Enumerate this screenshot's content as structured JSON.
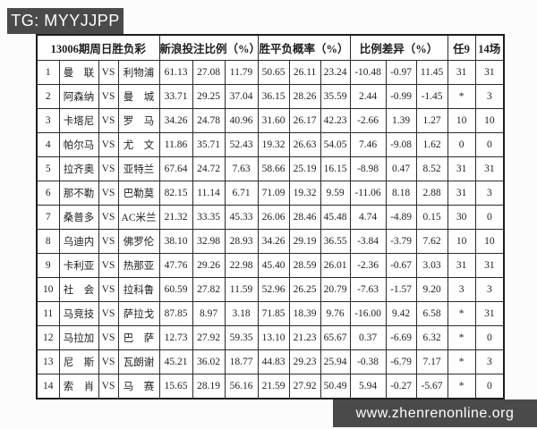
{
  "banners": {
    "top": "TG: MYYJJPP",
    "bottom": "www.zhenrenonline.org"
  },
  "colors": {
    "banner_background": "#4a4a4a",
    "banner_text": "#ffffff",
    "table_border": "#1c1c1c",
    "text": "#1e1e1e",
    "negative_value": "#9e4b4b"
  },
  "table": {
    "group_headers": {
      "period": "13006期周日胜负彩",
      "bet_ratio": "新浪投注比例（%）",
      "probability": "胜平负概率（%）",
      "difference": "比例差异（%）",
      "ren9": "任9",
      "c14": "14场"
    },
    "rows": [
      {
        "no": "1",
        "home": "曼　联",
        "vs": "VS",
        "away": "利物浦",
        "bet": [
          "61.13",
          "27.08",
          "11.79"
        ],
        "prob": [
          "50.65",
          "26.11",
          "23.24"
        ],
        "diff": [
          "-10.48",
          "-0.97",
          "11.45"
        ],
        "ren9": "31",
        "c14": "31"
      },
      {
        "no": "2",
        "home": "阿森纳",
        "vs": "VS",
        "away": "曼　城",
        "bet": [
          "33.71",
          "29.25",
          "37.04"
        ],
        "prob": [
          "36.15",
          "28.26",
          "35.59"
        ],
        "diff": [
          "2.44",
          "-0.99",
          "-1.45"
        ],
        "ren9": "*",
        "c14": "3"
      },
      {
        "no": "3",
        "home": "卡塔尼",
        "vs": "VS",
        "away": "罗　马",
        "bet": [
          "34.26",
          "24.78",
          "40.96"
        ],
        "prob": [
          "31.60",
          "26.17",
          "42.23"
        ],
        "diff": [
          "-2.66",
          "1.39",
          "1.27"
        ],
        "ren9": "10",
        "c14": "10"
      },
      {
        "no": "4",
        "home": "帕尔马",
        "vs": "VS",
        "away": "尤　文",
        "bet": [
          "11.86",
          "35.71",
          "52.43"
        ],
        "prob": [
          "19.32",
          "26.63",
          "54.05"
        ],
        "diff": [
          "7.46",
          "-9.08",
          "1.62"
        ],
        "ren9": "0",
        "c14": "0"
      },
      {
        "no": "5",
        "home": "拉齐奥",
        "vs": "VS",
        "away": "亚特兰",
        "bet": [
          "67.64",
          "24.72",
          "7.63"
        ],
        "prob": [
          "58.66",
          "25.19",
          "16.15"
        ],
        "diff": [
          "-8.98",
          "0.47",
          "8.52"
        ],
        "ren9": "31",
        "c14": "31"
      },
      {
        "no": "6",
        "home": "那不勒",
        "vs": "VS",
        "away": "巴勒莫",
        "bet": [
          "82.15",
          "11.14",
          "6.71"
        ],
        "prob": [
          "71.09",
          "19.32",
          "9.59"
        ],
        "diff": [
          "-11.06",
          "8.18",
          "2.88"
        ],
        "ren9": "31",
        "c14": "3"
      },
      {
        "no": "7",
        "home": "桑普多",
        "vs": "VS",
        "away": "AC米兰",
        "bet": [
          "21.32",
          "33.35",
          "45.33"
        ],
        "prob": [
          "26.06",
          "28.46",
          "45.48"
        ],
        "diff": [
          "4.74",
          "-4.89",
          "0.15"
        ],
        "ren9": "30",
        "c14": "0"
      },
      {
        "no": "8",
        "home": "乌迪内",
        "vs": "VS",
        "away": "佛罗伦",
        "bet": [
          "38.10",
          "32.98",
          "28.93"
        ],
        "prob": [
          "34.26",
          "29.19",
          "36.55"
        ],
        "diff": [
          "-3.84",
          "-3.79",
          "7.62"
        ],
        "ren9": "10",
        "c14": "10"
      },
      {
        "no": "9",
        "home": "卡利亚",
        "vs": "VS",
        "away": "热那亚",
        "bet": [
          "47.76",
          "29.26",
          "22.98"
        ],
        "prob": [
          "45.40",
          "28.59",
          "26.01"
        ],
        "diff": [
          "-2.36",
          "-0.67",
          "3.03"
        ],
        "ren9": "31",
        "c14": "31"
      },
      {
        "no": "10",
        "home": "社　会",
        "vs": "VS",
        "away": "拉科鲁",
        "bet": [
          "60.59",
          "27.82",
          "11.59"
        ],
        "prob": [
          "52.96",
          "26.25",
          "20.79"
        ],
        "diff": [
          "-7.63",
          "-1.57",
          "9.20"
        ],
        "ren9": "3",
        "c14": "3"
      },
      {
        "no": "11",
        "home": "马竞技",
        "vs": "VS",
        "away": "萨拉戈",
        "bet": [
          "87.85",
          "8.97",
          "3.18"
        ],
        "prob": [
          "71.85",
          "18.39",
          "9.76"
        ],
        "diff": [
          "-16.00",
          "9.42",
          "6.58"
        ],
        "ren9": "*",
        "c14": "31"
      },
      {
        "no": "12",
        "home": "马拉加",
        "vs": "VS",
        "away": "巴　萨",
        "bet": [
          "12.73",
          "27.92",
          "59.35"
        ],
        "prob": [
          "13.10",
          "21.23",
          "65.67"
        ],
        "diff": [
          "0.37",
          "-6.69",
          "6.32"
        ],
        "ren9": "*",
        "c14": "0"
      },
      {
        "no": "13",
        "home": "尼　斯",
        "vs": "VS",
        "away": "瓦朗谢",
        "bet": [
          "45.21",
          "36.02",
          "18.77"
        ],
        "prob": [
          "44.83",
          "29.23",
          "25.94"
        ],
        "diff": [
          "-0.38",
          "-6.79",
          "7.17"
        ],
        "ren9": "*",
        "c14": "3"
      },
      {
        "no": "14",
        "home": "索　肖",
        "vs": "VS",
        "away": "马　赛",
        "bet": [
          "15.65",
          "28.19",
          "56.16"
        ],
        "prob": [
          "21.59",
          "27.92",
          "50.49"
        ],
        "diff": [
          "5.94",
          "-0.27",
          "-5.67"
        ],
        "ren9": "*",
        "c14": "0"
      }
    ]
  }
}
